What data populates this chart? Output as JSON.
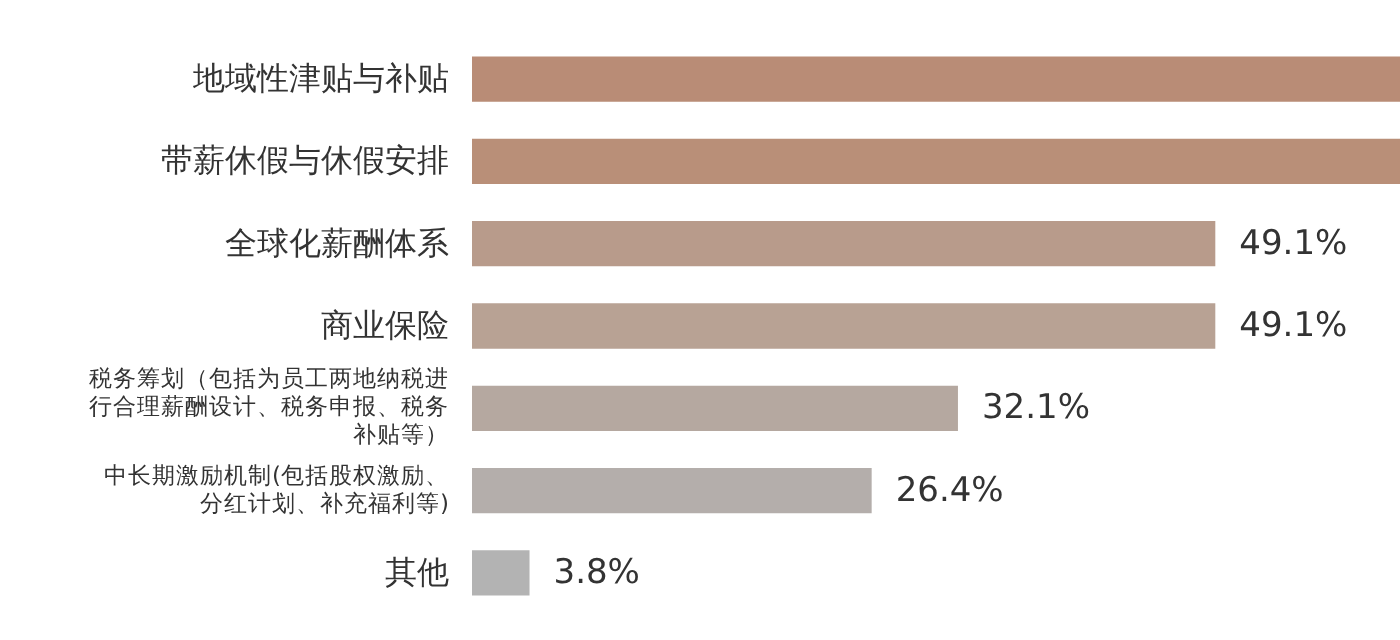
{
  "chart_data": {
    "type": "bar",
    "orientation": "horizontal",
    "categories": [
      "地域性津贴与补贴",
      "带薪休假与休假安排",
      "全球化薪酬体系",
      "商业保险",
      "税务筹划（包括为员工两地纳税进行合理薪酬设计、税务申报、税务补贴等）",
      "中长期激励机制(包括股权激励、分红计划、补充福利等)",
      "其他"
    ],
    "values": [
      61.3,
      61.3,
      49.1,
      49.1,
      32.1,
      26.4,
      3.8
    ],
    "value_labels": [
      null,
      null,
      "49.1%",
      "49.1%",
      "32.1%",
      "26.4%",
      "3.8%"
    ],
    "colors": [
      "#b98c76",
      "#b98f78",
      "#b89b8b",
      "#b8a294",
      "#b5a8a0",
      "#b4aeab",
      "#b3b3b3"
    ],
    "xlim": [
      0,
      61.3
    ],
    "tick_labels": "y"
  }
}
